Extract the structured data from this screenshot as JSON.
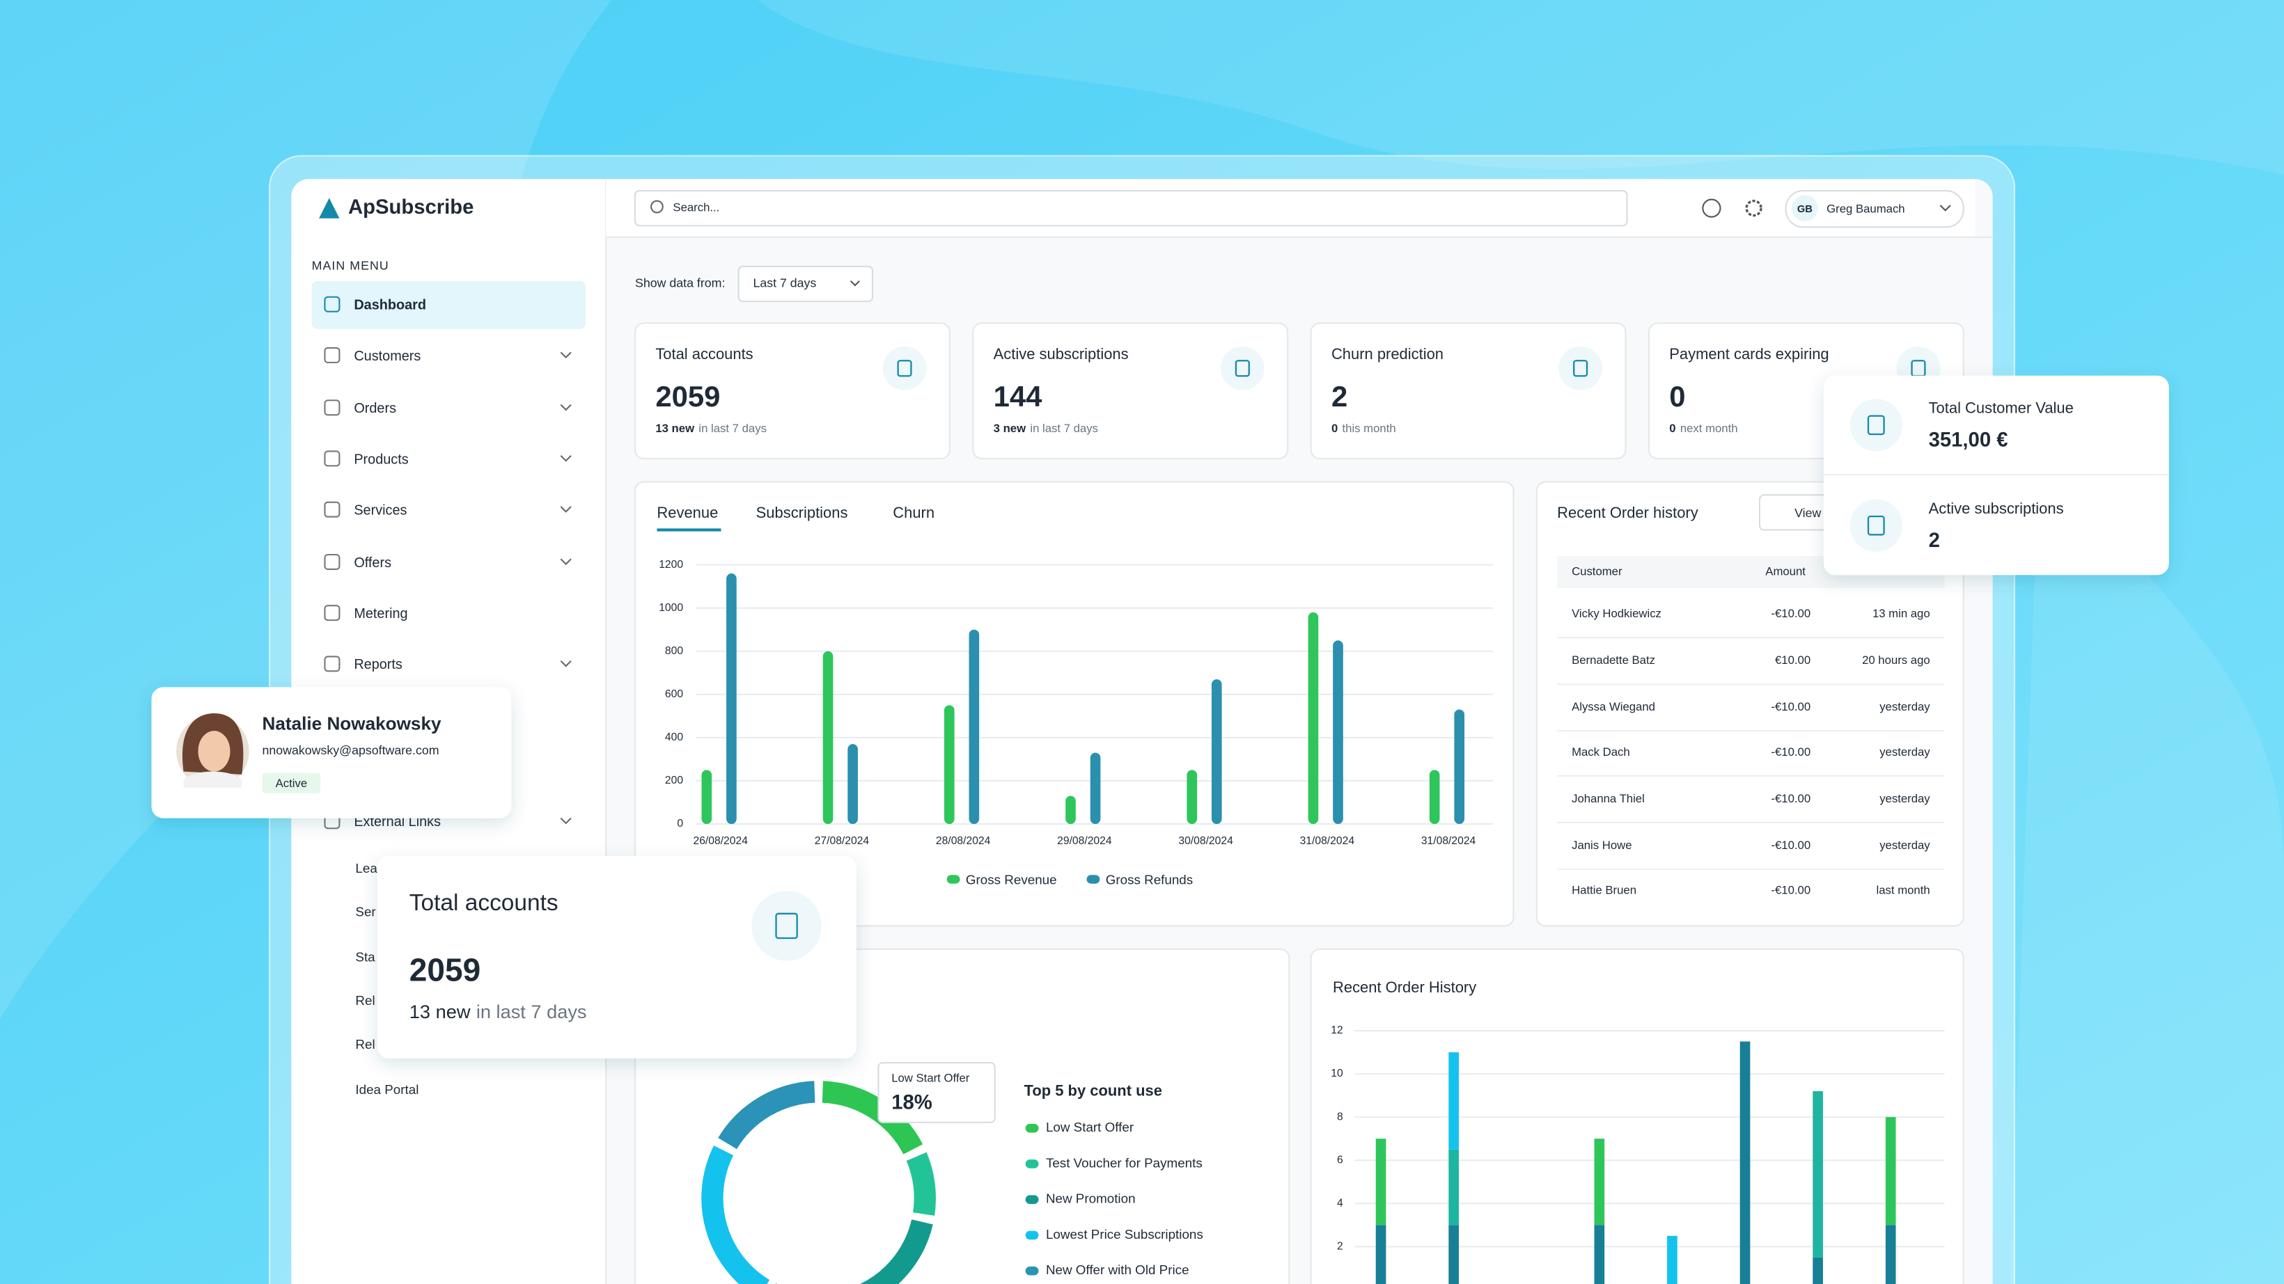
{
  "brand": "ApSubscribe",
  "search_placeholder": "Search...",
  "user": {
    "initials": "GB",
    "name": "Greg Baumach"
  },
  "menu_heading": "MAIN MENU",
  "menu": [
    {
      "label": "Dashboard",
      "active": true
    },
    {
      "label": "Customers",
      "submenu": true
    },
    {
      "label": "Orders",
      "submenu": true
    },
    {
      "label": "Products",
      "submenu": true
    },
    {
      "label": "Services",
      "submenu": true
    },
    {
      "label": "Offers",
      "submenu": true
    },
    {
      "label": "Metering"
    },
    {
      "label": "Reports",
      "submenu": true
    },
    {
      "label": "External Links",
      "submenu": true
    }
  ],
  "sub_links": [
    "Lea",
    "Ser",
    "Sta",
    "Rel",
    "Rel",
    "Idea Portal"
  ],
  "filter": {
    "label": "Show data from:",
    "value": "Last 7 days"
  },
  "stats": [
    {
      "title": "Total accounts",
      "value": 2059,
      "highlight": "13 new",
      "note": "in last 7 days"
    },
    {
      "title": "Active subscriptions",
      "value": 144,
      "highlight": "3 new",
      "note": "in last 7 days"
    },
    {
      "title": "Churn prediction",
      "value": 2,
      "highlight": "0",
      "note": "this month"
    },
    {
      "title": "Payment cards expiring",
      "value": 0,
      "highlight": "0",
      "note": "next month"
    }
  ],
  "tabs": [
    "Revenue",
    "Subscriptions",
    "Churn"
  ],
  "revenue_chart": {
    "type": "bar",
    "categories": [
      "26/08/2024",
      "27/08/2024",
      "28/08/2024",
      "29/08/2024",
      "30/08/2024",
      "31/08/2024",
      "31/08/2024"
    ],
    "series": [
      {
        "name": "Gross Revenue",
        "color": "#2ec65a",
        "values": [
          250,
          800,
          550,
          130,
          250,
          980,
          250
        ]
      },
      {
        "name": "Gross Refunds",
        "color": "#2b8fae",
        "values": [
          1160,
          370,
          900,
          330,
          670,
          850,
          530
        ]
      }
    ],
    "ylim": [
      0,
      1200
    ],
    "yticks": [
      0,
      200,
      400,
      600,
      800,
      1000,
      1200
    ],
    "grid": true
  },
  "order_history": {
    "title": "Recent Order history",
    "button": "View",
    "columns": [
      "Customer",
      "Amount"
    ],
    "rows": [
      [
        "Vicky Hodkiewicz",
        "-€10.00",
        "13 min ago"
      ],
      [
        "Bernadette Batz",
        "€10.00",
        "20 hours ago"
      ],
      [
        "Alyssa Wiegand",
        "-€10.00",
        "yesterday"
      ],
      [
        "Mack Dach",
        "-€10.00",
        "yesterday"
      ],
      [
        "Johanna Thiel",
        "-€10.00",
        "yesterday"
      ],
      [
        "Janis Howe",
        "-€10.00",
        "yesterday"
      ],
      [
        "Hattie Bruen",
        "-€10.00",
        "last month"
      ]
    ]
  },
  "value_card": [
    {
      "label": "Total Customer Value",
      "value": "351,00 €"
    },
    {
      "label": "Active subscriptions",
      "value": "2"
    }
  ],
  "profile": {
    "name": "Natalie Nowakowsky",
    "email": "nnowakowsky@apsoftware.com",
    "status": "Active"
  },
  "highlight_card": {
    "title": "Total accounts",
    "value": 2059,
    "highlight": "13 new",
    "note": "in last 7 days"
  },
  "offers_chart": {
    "type": "donut",
    "legend_title": "Top 5 by count use",
    "categories": [
      "Low Start Offer",
      "Test Voucher for Payments",
      "New Promotion",
      "Lowest Price Subscriptions",
      "New Offer with Old Price"
    ],
    "values": [
      18,
      10,
      30,
      25,
      17
    ],
    "colors": [
      "#2dc653",
      "#22c497",
      "#139a8e",
      "#14c2ee",
      "#2b93b8"
    ],
    "tooltip_value": "18%"
  },
  "orders_chart": {
    "type": "stacked-bar",
    "title": "Recent Order History",
    "categories": [
      null,
      null,
      null,
      null,
      null,
      null,
      null,
      null
    ],
    "series": [
      {
        "color": "#177f96",
        "values": [
          3,
          3,
          0,
          3,
          0,
          11.5,
          1.5,
          3
        ]
      },
      {
        "color": "#2ec65a",
        "values": [
          4,
          0,
          0,
          4,
          0,
          0,
          0,
          5
        ]
      },
      {
        "color": "#1db5a0",
        "values": [
          0,
          3.5,
          0,
          0,
          0,
          0,
          7.7,
          0
        ]
      },
      {
        "color": "#14c2ee",
        "values": [
          0,
          4.5,
          0,
          0,
          2.5,
          0,
          0,
          0
        ]
      }
    ],
    "ylim": [
      0,
      12
    ],
    "yticks": [
      2,
      4,
      6,
      8,
      10,
      12
    ],
    "grid": true
  }
}
